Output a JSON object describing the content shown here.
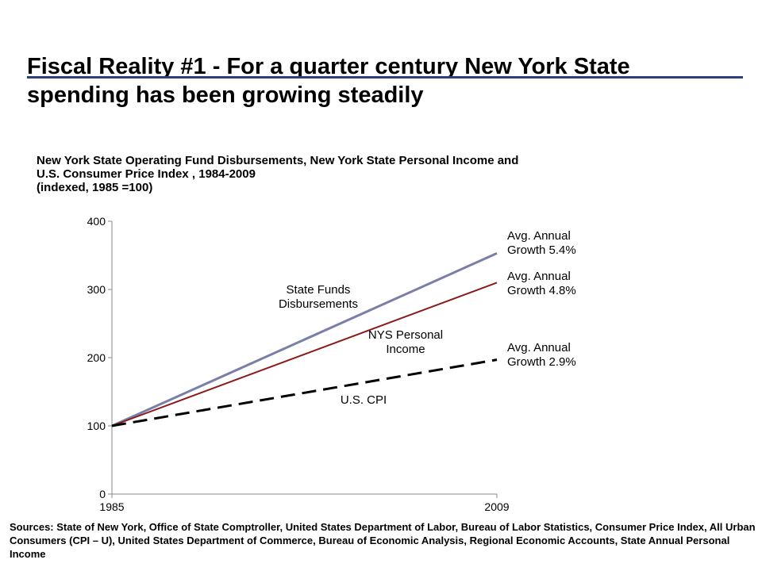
{
  "slide": {
    "title_line1": "Fiscal Reality #1 -  For a quarter century New York State",
    "title_line2": "spending has been growing steadily",
    "rule_color": "#2f3f7a"
  },
  "caption": {
    "line1": "New York State Operating Fund Disbursements, New York State Personal Income and",
    "line2": "U.S. Consumer Price Index , 1984-2009",
    "line3": "(indexed, 1985 =100)"
  },
  "chart_data": {
    "type": "line",
    "title": "",
    "xlabel": "",
    "ylabel": "",
    "xlim": [
      1985,
      2009
    ],
    "ylim": [
      0,
      400
    ],
    "x_ticks": [
      "1985",
      "2009"
    ],
    "y_ticks": [
      "0",
      "100",
      "200",
      "300",
      "400"
    ],
    "y_tick_values": [
      0,
      100,
      200,
      300,
      400
    ],
    "grid": false,
    "legend": "none",
    "series": [
      {
        "name": "State Funds Disbursements",
        "color": "#7a7fa8",
        "dash": "solid",
        "points": [
          [
            1985,
            100
          ],
          [
            2009,
            353
          ]
        ]
      },
      {
        "name": "NYS Personal Income",
        "color": "#8b1a1a",
        "dash": "solid",
        "points": [
          [
            1985,
            100
          ],
          [
            2009,
            310
          ]
        ]
      },
      {
        "name": "U.S. CPI",
        "color": "#000000",
        "dash": "dashed",
        "points": [
          [
            1985,
            100
          ],
          [
            2009,
            197
          ]
        ]
      }
    ],
    "annotations": [
      {
        "lines": [
          "State Funds",
          "Disbursements"
        ],
        "for": "State Funds Disbursements"
      },
      {
        "lines": [
          "NYS Personal",
          "Income"
        ],
        "for": "NYS Personal Income"
      },
      {
        "lines": [
          "U.S. CPI"
        ],
        "for": "U.S. CPI"
      },
      {
        "lines": [
          "Avg. Annual",
          "Growth 5.4%"
        ],
        "for": "State Funds Disbursements"
      },
      {
        "lines": [
          "Avg. Annual",
          "Growth 4.8%"
        ],
        "for": "NYS Personal Income"
      },
      {
        "lines": [
          "Avg. Annual",
          "Growth 2.9%"
        ],
        "for": "U.S. CPI"
      }
    ]
  },
  "sources": "Sources: State of New York, Office of State Comptroller, United States Department of Labor, Bureau of Labor Statistics, Consumer Price Index, All Urban Consumers (CPI – U), United States Department of Commerce, Bureau of Economic Analysis, Regional Economic Accounts, State Annual Personal Income"
}
